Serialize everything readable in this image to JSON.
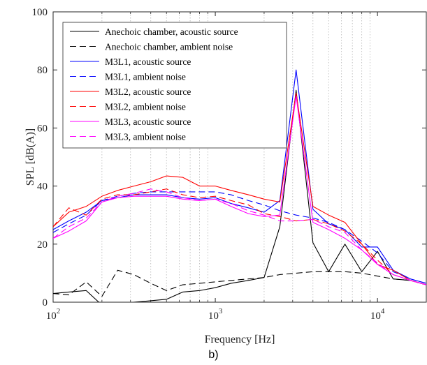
{
  "chart_data": {
    "type": "line",
    "xlabel": "Frequency [Hz]",
    "ylabel": "SPL [dB(A)]",
    "xscale": "log",
    "xlim": [
      100,
      20000
    ],
    "ylim": [
      0,
      100
    ],
    "yticks": [
      0,
      20,
      40,
      60,
      80,
      100
    ],
    "xticks": [
      {
        "value": 100,
        "base": "10",
        "exp": "2"
      },
      {
        "value": 1000,
        "base": "10",
        "exp": "3"
      },
      {
        "value": 10000,
        "base": "10",
        "exp": "4"
      }
    ],
    "grid": "x-minor-dotted",
    "legend_position": "top-center",
    "x": [
      100,
      125,
      160,
      200,
      250,
      315,
      400,
      500,
      630,
      800,
      1000,
      1250,
      1600,
      2000,
      2500,
      3150,
      4000,
      5000,
      6300,
      8000,
      10000,
      12500,
      16000,
      20000
    ],
    "series": [
      {
        "name": "Anechoic chamber, acoustic source",
        "color": "#000000",
        "dash": "solid",
        "values": [
          3,
          3.5,
          4,
          -1,
          -2,
          0,
          0.5,
          1,
          3.5,
          4,
          5,
          6.5,
          7.5,
          8.5,
          26,
          73,
          20.5,
          10.5,
          20,
          10.5,
          17.5,
          8,
          7.5,
          6
        ]
      },
      {
        "name": "Anechoic chamber, ambient noise",
        "color": "#000000",
        "dash": "dashed",
        "values": [
          3,
          2.5,
          7,
          2,
          11,
          9.5,
          6.5,
          4,
          6,
          6.5,
          7,
          7.5,
          8,
          8.5,
          9.5,
          10,
          10.5,
          10.5,
          10.5,
          10,
          9,
          8,
          7.5,
          6
        ]
      },
      {
        "name": "M3L1, acoustic source",
        "color": "#0000ff",
        "dash": "solid",
        "values": [
          25,
          28,
          31,
          35,
          36,
          37,
          37,
          37,
          36,
          35.5,
          36,
          34,
          32.5,
          31,
          35,
          80,
          32,
          27,
          25,
          19,
          19,
          11,
          8,
          6.5
        ]
      },
      {
        "name": "M3L1, ambient noise",
        "color": "#0000ff",
        "dash": "dashed",
        "values": [
          24,
          27,
          30,
          35,
          36.5,
          37.5,
          38,
          38,
          38,
          38,
          38,
          37,
          35,
          33.5,
          31.5,
          30,
          29,
          27.5,
          25,
          21,
          17,
          10.5,
          8,
          6.5
        ]
      },
      {
        "name": "M3L2, acoustic source",
        "color": "#ff0000",
        "dash": "solid",
        "values": [
          26,
          31,
          33,
          36.5,
          38.5,
          40,
          41.5,
          43.5,
          43,
          40,
          40,
          38.5,
          37,
          35.5,
          34.5,
          72,
          33,
          30,
          27.5,
          20,
          13,
          11,
          7.5,
          6
        ]
      },
      {
        "name": "M3L2, ambient noise",
        "color": "#ff0000",
        "dash": "dashed",
        "values": [
          26,
          32.5,
          30,
          35.5,
          37,
          37,
          38,
          39,
          37,
          36,
          36.5,
          35,
          33.5,
          30.5,
          29.5,
          28,
          28.5,
          27,
          24.5,
          20,
          14.5,
          9.5,
          7.5,
          6
        ]
      },
      {
        "name": "M3L3, acoustic source",
        "color": "#ff00ff",
        "dash": "solid",
        "values": [
          22,
          24.5,
          28,
          34.5,
          36,
          36.5,
          36.5,
          36.5,
          35.5,
          35,
          35.5,
          33,
          30.5,
          29.5,
          30,
          71,
          27.5,
          25,
          22,
          18,
          13,
          9.5,
          7.5,
          6
        ]
      },
      {
        "name": "M3L3, ambient noise",
        "color": "#ff00ff",
        "dash": "dashed",
        "values": [
          22,
          26,
          29,
          34.5,
          36.5,
          37.5,
          39,
          38,
          36,
          35,
          35.5,
          34,
          31.5,
          30,
          28,
          28,
          28.5,
          26,
          24,
          18,
          13.5,
          9.5,
          7.5,
          6
        ]
      }
    ]
  },
  "panel_label": "b)"
}
